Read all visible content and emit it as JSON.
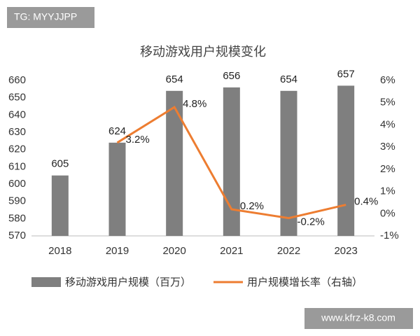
{
  "chart_data": {
    "type": "bar-line",
    "title": "移动游戏用户规模变化",
    "categories": [
      "2018",
      "2019",
      "2020",
      "2021",
      "2022",
      "2023"
    ],
    "series": [
      {
        "name": "移动游戏用户规模（百万）",
        "type": "bar",
        "color": "#7f7f7f",
        "values": [
          605,
          624,
          654,
          656,
          654,
          657
        ]
      },
      {
        "name": "用户规模增长率（右轴）",
        "type": "line",
        "axis": "y2",
        "color": "#ed7d31",
        "values": [
          null,
          3.2,
          4.8,
          0.2,
          -0.2,
          0.4
        ],
        "value_labels": [
          null,
          "3.2%",
          "4.8%",
          "0.2%",
          "-0.2%",
          "0.4%"
        ]
      }
    ],
    "ylim": [
      570,
      660
    ],
    "yticks": [
      570,
      580,
      590,
      600,
      610,
      620,
      630,
      640,
      650,
      660
    ],
    "y2lim": [
      -1,
      6
    ],
    "y2ticks": [
      {
        "value": -1,
        "label": "-1%"
      },
      {
        "value": 0,
        "label": "0%"
      },
      {
        "value": 1,
        "label": "1%"
      },
      {
        "value": 2,
        "label": "2%"
      },
      {
        "value": 3,
        "label": "3%"
      },
      {
        "value": 4,
        "label": "4%"
      },
      {
        "value": 5,
        "label": "5%"
      },
      {
        "value": 6,
        "label": "6%"
      }
    ],
    "legend": "bottom",
    "grid": false
  },
  "overlays": {
    "top_left": "TG: MYYJJPP",
    "bottom_right": "www.kfrz-k8.com"
  }
}
